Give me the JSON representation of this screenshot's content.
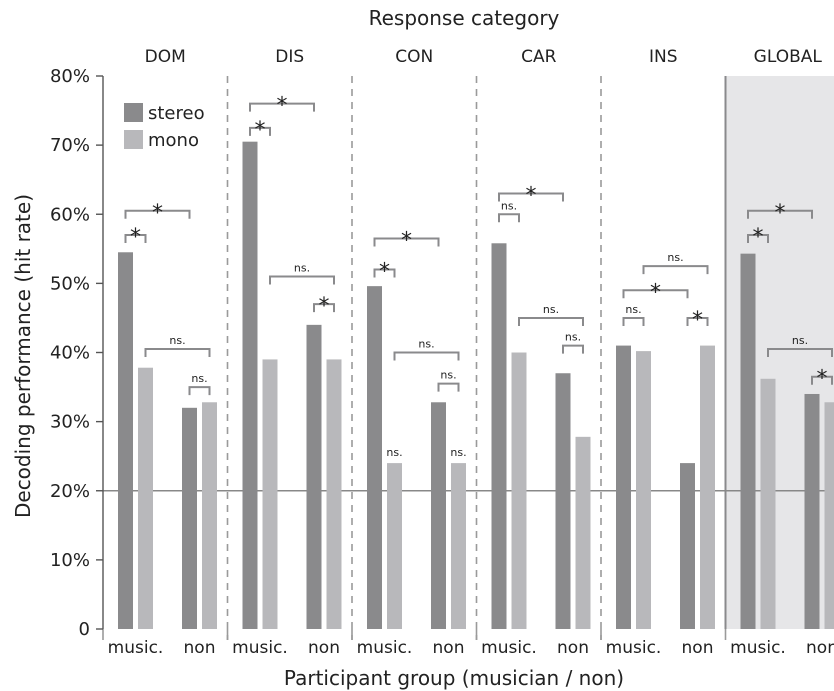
{
  "chart_data": {
    "type": "bar",
    "top_title": "Response category",
    "xlabel": "Participant group (musician / non)",
    "ylabel": "Decoding performance (hit rate)",
    "ylim": [
      0,
      80
    ],
    "y_ticks": [
      "0",
      "10%",
      "20%",
      "30%",
      "40%",
      "50%",
      "60%",
      "70%",
      "80%"
    ],
    "reference_line": 20,
    "groups": [
      "music.",
      "non"
    ],
    "legend": {
      "position": "top-left",
      "items": [
        {
          "name": "stereo",
          "color": "#8a8a8c"
        },
        {
          "name": "mono",
          "color": "#b8b8bb"
        }
      ]
    },
    "panels": [
      {
        "name": "DOM",
        "highlight": false,
        "series": [
          {
            "name": "stereo",
            "values": [
              54.5,
              32
            ]
          },
          {
            "name": "mono",
            "values": [
              37.8,
              32.8
            ]
          }
        ],
        "sig": [
          {
            "type": "within",
            "group": 0,
            "label": "*",
            "level": 57
          },
          {
            "type": "across",
            "cond": "stereo",
            "label": "*",
            "level": 60.5
          },
          {
            "type": "across",
            "cond": "mono",
            "label": "ns.",
            "level": 40.5
          },
          {
            "type": "within",
            "group": 1,
            "label": "ns.",
            "level": 35
          }
        ]
      },
      {
        "name": "DIS",
        "highlight": false,
        "series": [
          {
            "name": "stereo",
            "values": [
              70.5,
              44
            ]
          },
          {
            "name": "mono",
            "values": [
              39,
              39
            ]
          }
        ],
        "sig": [
          {
            "type": "within",
            "group": 0,
            "label": "*",
            "level": 72.5
          },
          {
            "type": "across",
            "cond": "stereo",
            "label": "*",
            "level": 76
          },
          {
            "type": "across",
            "cond": "mono",
            "label": "ns.",
            "level": 51
          },
          {
            "type": "within",
            "group": 1,
            "label": "*",
            "level": 47
          }
        ]
      },
      {
        "name": "CON",
        "highlight": false,
        "series": [
          {
            "name": "stereo",
            "values": [
              49.6,
              32.8
            ]
          },
          {
            "name": "mono",
            "values": [
              24,
              24
            ]
          }
        ],
        "sig": [
          {
            "type": "within",
            "group": 0,
            "label": "*",
            "level": 52
          },
          {
            "type": "across",
            "cond": "stereo",
            "label": "*",
            "level": 56.5
          },
          {
            "type": "across",
            "cond": "mono",
            "label": "ns.",
            "level": 40
          },
          {
            "type": "within",
            "group": 1,
            "label": "ns.",
            "level": 35.5
          },
          {
            "type": "note",
            "group": 0,
            "cond": "mono",
            "label": "ns."
          },
          {
            "type": "note",
            "group": 1,
            "cond": "mono",
            "label": "ns."
          }
        ]
      },
      {
        "name": "CAR",
        "highlight": false,
        "series": [
          {
            "name": "stereo",
            "values": [
              55.8,
              37
            ]
          },
          {
            "name": "mono",
            "values": [
              40,
              27.8
            ]
          }
        ],
        "sig": [
          {
            "type": "within",
            "group": 0,
            "label": "ns.",
            "level": 60
          },
          {
            "type": "across",
            "cond": "stereo",
            "label": "*",
            "level": 63
          },
          {
            "type": "across",
            "cond": "mono",
            "label": "ns.",
            "level": 45
          },
          {
            "type": "within",
            "group": 1,
            "label": "ns.",
            "level": 41
          }
        ]
      },
      {
        "name": "INS",
        "highlight": false,
        "series": [
          {
            "name": "stereo",
            "values": [
              41,
              24
            ]
          },
          {
            "name": "mono",
            "values": [
              40.2,
              41
            ]
          }
        ],
        "sig": [
          {
            "type": "within",
            "group": 0,
            "label": "ns.",
            "level": 45
          },
          {
            "type": "across",
            "cond": "stereo",
            "label": "*",
            "level": 49
          },
          {
            "type": "across",
            "cond": "mono",
            "label": "ns.",
            "level": 52.5
          },
          {
            "type": "within",
            "group": 1,
            "label": "*",
            "level": 45
          }
        ]
      },
      {
        "name": "GLOBAL",
        "highlight": true,
        "series": [
          {
            "name": "stereo",
            "values": [
              54.3,
              34
            ]
          },
          {
            "name": "mono",
            "values": [
              36.2,
              32.8
            ]
          }
        ],
        "sig": [
          {
            "type": "within",
            "group": 0,
            "label": "*",
            "level": 57
          },
          {
            "type": "across",
            "cond": "stereo",
            "label": "*",
            "level": 60.5
          },
          {
            "type": "across",
            "cond": "mono",
            "label": "ns.",
            "level": 40.5
          },
          {
            "type": "within",
            "group": 1,
            "label": "*",
            "level": 36.5
          }
        ]
      }
    ]
  }
}
